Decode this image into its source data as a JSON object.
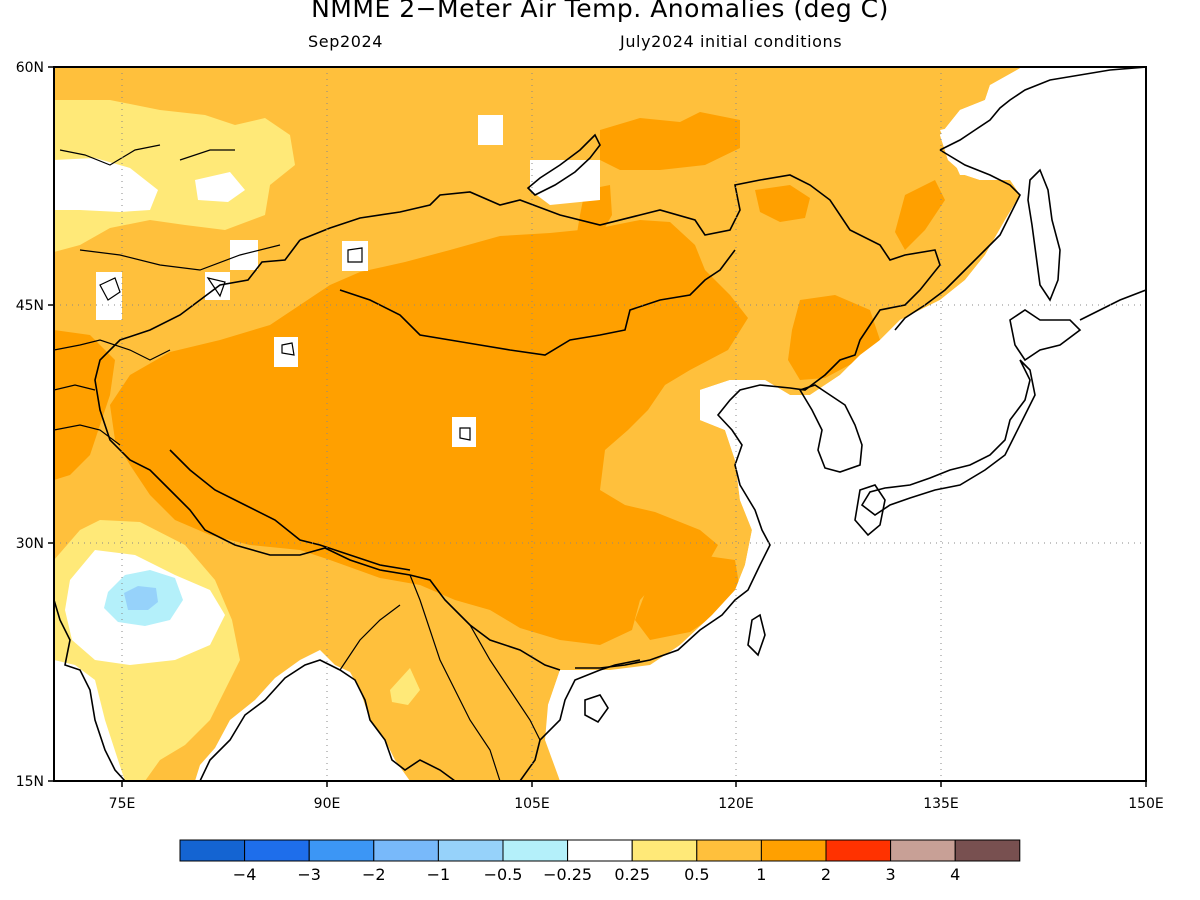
{
  "title": "NMME 2−Meter Air Temp. Anomalies (deg C)",
  "subtitle_left": "Sep2024",
  "subtitle_right": "July2024 initial conditions",
  "map": {
    "lon_range": [
      70,
      150
    ],
    "lat_range": [
      15,
      60
    ],
    "lat_ticks": [
      "60N",
      "45N",
      "30N",
      "15N"
    ],
    "lon_ticks": [
      "75E",
      "90E",
      "105E",
      "120E",
      "135E",
      "150E"
    ],
    "grid": "dotted"
  },
  "colorbar": {
    "colors": [
      "#1464d2",
      "#1e6eeb",
      "#3c96f5",
      "#78b9fa",
      "#96d2fa",
      "#b4f0fa",
      "#ffffff",
      "#ffe978",
      "#ffc03c",
      "#ffa000",
      "#ff3200",
      "#c8a096",
      "#785050"
    ],
    "labels": [
      "−4",
      "−3",
      "−2",
      "−1",
      "−0.5",
      "−0.25",
      "0.25",
      "0.5",
      "1",
      "2",
      "3",
      "4"
    ]
  },
  "anomaly_palette": {
    "light_yellow": "#ffe978",
    "light_orange": "#ffc03c",
    "orange": "#ffa000",
    "light_cyan": "#b4f0fa",
    "light_blue": "#96d2fa",
    "neutral": "#ffffff"
  }
}
